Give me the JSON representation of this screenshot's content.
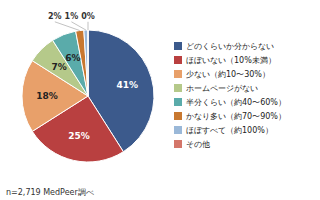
{
  "chart_data": {
    "type": "pie",
    "categories": [
      "どのくらいか分からない",
      "ほぼいない（10%未満）",
      "少ない（約10〜30%）",
      "ホームページがない",
      "半分くらい（約40〜60%）",
      "かなり多い（約70〜90%）",
      "ほぼすべて（約100%）",
      "その他"
    ],
    "values": [
      41,
      25,
      18,
      7,
      6,
      2,
      1,
      0
    ],
    "value_labels": [
      "41%",
      "25%",
      "18%",
      "7%",
      "6%",
      "2%",
      "1%",
      "0%"
    ],
    "colors": [
      "#3c5a8c",
      "#b94040",
      "#e8a06a",
      "#b5c98a",
      "#5aabaa",
      "#c87830",
      "#9ab8d8",
      "#d4766a"
    ],
    "data_labels": true,
    "legend": "right",
    "annotations": [
      "n=2,719 MedPeer調べ"
    ]
  }
}
